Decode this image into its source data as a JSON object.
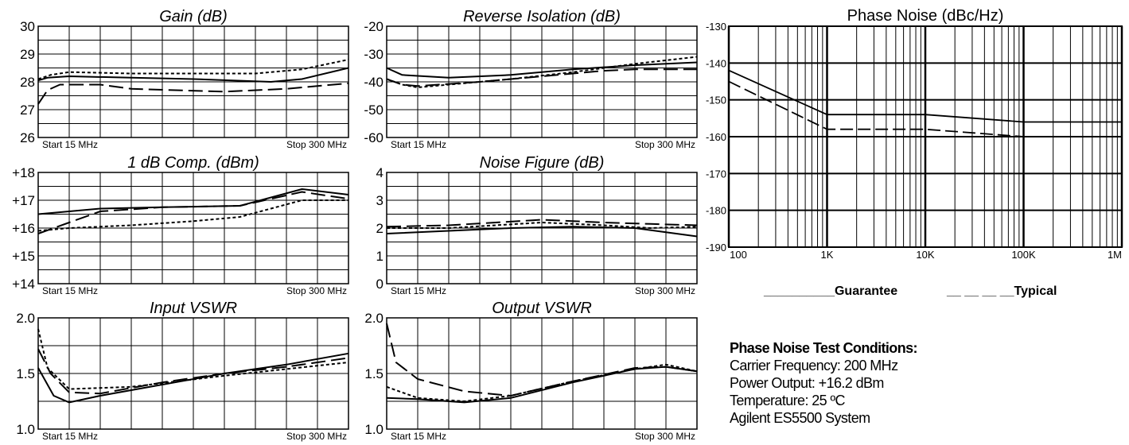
{
  "chart_data": [
    {
      "type": "line",
      "title": "Gain (dB)",
      "yticks": [
        "30",
        "29",
        "28",
        "27",
        "26"
      ],
      "ylim": [
        26,
        30
      ],
      "xlim": [
        0,
        10
      ],
      "start_label": "Start 15 MHz",
      "stop_label": "Stop 300 MHz",
      "grid": true,
      "series": [
        {
          "style": "solid",
          "points": [
            [
              0,
              28.05
            ],
            [
              0.3,
              28.15
            ],
            [
              1,
              28.2
            ],
            [
              3,
              28.15
            ],
            [
              5,
              28.1
            ],
            [
              7.5,
              28.0
            ],
            [
              8.5,
              28.1
            ],
            [
              10,
              28.5
            ]
          ]
        },
        {
          "style": "dotted",
          "points": [
            [
              0,
              28.1
            ],
            [
              0.4,
              28.25
            ],
            [
              1,
              28.35
            ],
            [
              3,
              28.3
            ],
            [
              5,
              28.3
            ],
            [
              7,
              28.3
            ],
            [
              8.5,
              28.45
            ],
            [
              10,
              28.8
            ]
          ]
        },
        {
          "style": "dashed",
          "points": [
            [
              0,
              27.2
            ],
            [
              0.3,
              27.7
            ],
            [
              0.7,
              27.9
            ],
            [
              2,
              27.9
            ],
            [
              3,
              27.75
            ],
            [
              6,
              27.65
            ],
            [
              8,
              27.75
            ],
            [
              10,
              27.95
            ]
          ]
        }
      ]
    },
    {
      "type": "line",
      "title": "Reverse Isolation (dB)",
      "yticks": [
        "-20",
        "-30",
        "-40",
        "-50",
        "-60"
      ],
      "ylim": [
        -60,
        -20
      ],
      "xlim": [
        0,
        10
      ],
      "start_label": "Start 15 MHz",
      "stop_label": "Stop 300 MHz",
      "grid": true,
      "series": [
        {
          "style": "solid",
          "points": [
            [
              0,
              -35
            ],
            [
              0.5,
              -37.5
            ],
            [
              2,
              -38.5
            ],
            [
              4,
              -37.5
            ],
            [
              6,
              -35.5
            ],
            [
              8,
              -34
            ],
            [
              10,
              -33
            ]
          ]
        },
        {
          "style": "dotted",
          "points": [
            [
              0,
              -39
            ],
            [
              0.5,
              -41
            ],
            [
              1,
              -42
            ],
            [
              2,
              -41
            ],
            [
              4,
              -39
            ],
            [
              6,
              -36.5
            ],
            [
              8,
              -33.5
            ],
            [
              10,
              -31
            ]
          ]
        },
        {
          "style": "dashed",
          "points": [
            [
              0,
              -39
            ],
            [
              0.5,
              -41
            ],
            [
              1,
              -41.5
            ],
            [
              3,
              -40
            ],
            [
              5,
              -38
            ],
            [
              7,
              -36
            ],
            [
              8,
              -35.5
            ],
            [
              10,
              -35.5
            ]
          ]
        }
      ]
    },
    {
      "type": "line",
      "title": "1 dB Comp. (dBm)",
      "yticks": [
        "+18",
        "+17",
        "+16",
        "+15",
        "+14"
      ],
      "ylim": [
        14,
        18
      ],
      "xlim": [
        0,
        10
      ],
      "start_label": "Start 15 MHz",
      "stop_label": "Stop 300 MHz",
      "grid": true,
      "series": [
        {
          "style": "solid",
          "points": [
            [
              0,
              16.5
            ],
            [
              2,
              16.7
            ],
            [
              4,
              16.75
            ],
            [
              6.5,
              16.8
            ],
            [
              8.5,
              17.4
            ],
            [
              10,
              17.2
            ]
          ]
        },
        {
          "style": "dashed",
          "points": [
            [
              0,
              15.8
            ],
            [
              1,
              16.2
            ],
            [
              2,
              16.6
            ],
            [
              4,
              16.75
            ],
            [
              6.5,
              16.8
            ],
            [
              8.5,
              17.3
            ],
            [
              10,
              17.05
            ]
          ]
        },
        {
          "style": "dotted",
          "points": [
            [
              0,
              15.9
            ],
            [
              1,
              16.0
            ],
            [
              3,
              16.1
            ],
            [
              5,
              16.25
            ],
            [
              6.5,
              16.4
            ],
            [
              8.5,
              17.0
            ],
            [
              10,
              17.0
            ]
          ]
        }
      ]
    },
    {
      "type": "line",
      "title": "Noise Figure (dB)",
      "yticks": [
        "4",
        "3",
        "2",
        "1",
        "0"
      ],
      "ylim": [
        0,
        4
      ],
      "xlim": [
        0,
        10
      ],
      "start_label": "Start 15 MHz",
      "stop_label": "Stop 300 MHz",
      "grid": true,
      "series": [
        {
          "style": "solid",
          "points": [
            [
              0,
              1.8
            ],
            [
              2,
              1.9
            ],
            [
              4,
              2.0
            ],
            [
              6,
              2.05
            ],
            [
              8,
              2.0
            ],
            [
              10,
              1.7
            ]
          ]
        },
        {
          "style": "dashed",
          "points": [
            [
              0,
              2.05
            ],
            [
              2,
              2.1
            ],
            [
              5,
              2.3
            ],
            [
              7,
              2.2
            ],
            [
              8.5,
              2.15
            ],
            [
              10,
              2.1
            ]
          ]
        },
        {
          "style": "dotted",
          "points": [
            [
              0,
              2.0
            ],
            [
              2,
              2.0
            ],
            [
              5,
              2.2
            ],
            [
              7,
              2.1
            ],
            [
              8.5,
              2.0
            ],
            [
              10,
              2.05
            ]
          ]
        }
      ]
    },
    {
      "type": "line",
      "title": "Input VSWR",
      "yticks": [
        "2.0",
        "1.5",
        "1.0"
      ],
      "ylim": [
        1.0,
        2.0
      ],
      "xlim": [
        0,
        10
      ],
      "start_label": "Start 15 MHz",
      "stop_label": "Stop 300 MHz",
      "grid": true,
      "series": [
        {
          "style": "solid",
          "points": [
            [
              0,
              1.55
            ],
            [
              0.5,
              1.3
            ],
            [
              1,
              1.24
            ],
            [
              2,
              1.3
            ],
            [
              4,
              1.4
            ],
            [
              6,
              1.5
            ],
            [
              8,
              1.58
            ],
            [
              10,
              1.68
            ]
          ]
        },
        {
          "style": "dashed",
          "points": [
            [
              0,
              1.72
            ],
            [
              0.4,
              1.5
            ],
            [
              1,
              1.33
            ],
            [
              2,
              1.32
            ],
            [
              4,
              1.42
            ],
            [
              6,
              1.5
            ],
            [
              8,
              1.56
            ],
            [
              10,
              1.64
            ]
          ]
        },
        {
          "style": "dotted",
          "points": [
            [
              0,
              1.9
            ],
            [
              0.3,
              1.55
            ],
            [
              1,
              1.36
            ],
            [
              3,
              1.38
            ],
            [
              6,
              1.48
            ],
            [
              8,
              1.54
            ],
            [
              10,
              1.6
            ]
          ]
        }
      ]
    },
    {
      "type": "line",
      "title": "Output VSWR",
      "yticks": [
        "2.0",
        "1.5",
        "1.0"
      ],
      "ylim": [
        1.0,
        2.0
      ],
      "xlim": [
        0,
        10
      ],
      "start_label": "Start 15 MHz",
      "stop_label": "Stop 300 MHz",
      "grid": true,
      "series": [
        {
          "style": "solid",
          "points": [
            [
              0,
              1.28
            ],
            [
              1,
              1.27
            ],
            [
              2.5,
              1.24
            ],
            [
              4,
              1.28
            ],
            [
              6,
              1.42
            ],
            [
              8,
              1.54
            ],
            [
              9,
              1.56
            ],
            [
              10,
              1.52
            ]
          ]
        },
        {
          "style": "dashed",
          "points": [
            [
              0,
              1.95
            ],
            [
              0.3,
              1.6
            ],
            [
              1,
              1.45
            ],
            [
              2.5,
              1.34
            ],
            [
              4,
              1.3
            ],
            [
              6,
              1.43
            ],
            [
              8,
              1.55
            ],
            [
              9,
              1.56
            ],
            [
              10,
              1.52
            ]
          ]
        },
        {
          "style": "dotted",
          "points": [
            [
              0,
              1.38
            ],
            [
              1,
              1.28
            ],
            [
              2.5,
              1.25
            ],
            [
              4,
              1.3
            ],
            [
              6,
              1.43
            ],
            [
              8,
              1.54
            ],
            [
              9,
              1.58
            ],
            [
              10,
              1.52
            ]
          ]
        }
      ]
    },
    {
      "type": "line",
      "title": "Phase Noise (dBc/Hz)",
      "yticks": [
        "-130",
        "-140",
        "-150",
        "-160",
        "-170",
        "-180",
        "-190"
      ],
      "xticks": [
        "100",
        "1K",
        "10K",
        "100K",
        "1M"
      ],
      "x_tick_values": [
        100,
        1000,
        10000,
        100000,
        1000000
      ],
      "xscale": "log",
      "xlim": [
        100,
        1000000
      ],
      "ylim": [
        -190,
        -130
      ],
      "grid": true,
      "series": [
        {
          "name": "Guarantee",
          "style": "solid",
          "points": [
            [
              100,
              -142
            ],
            [
              1000,
              -154
            ],
            [
              10000,
              -154
            ],
            [
              100000,
              -156
            ],
            [
              1000000,
              -156
            ]
          ]
        },
        {
          "name": "Typical",
          "style": "dashed",
          "points": [
            [
              100,
              -145
            ],
            [
              1000,
              -158
            ],
            [
              10000,
              -158
            ],
            [
              100000,
              -160
            ],
            [
              1000000,
              -160
            ]
          ]
        }
      ]
    }
  ],
  "legend": {
    "guarantee_label": "__________Guarantee",
    "typical_label": "__ __ __ __Typical"
  },
  "conditions": {
    "title": "Phase Noise Test Conditions:",
    "lines": [
      "Carrier Frequency: 200 MHz",
      "Power Output: +16.2 dBm",
      "Temperature: 25 ºC",
      "Agilent ES5500 System"
    ]
  }
}
